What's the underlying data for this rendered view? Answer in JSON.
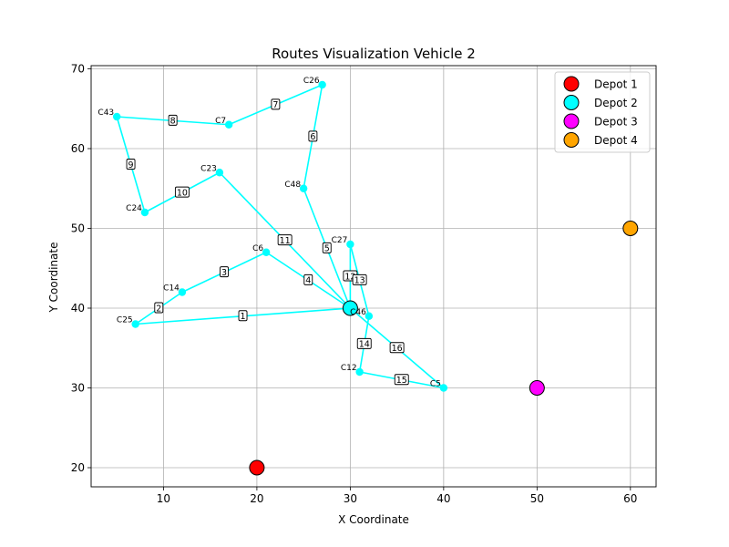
{
  "chart_data": {
    "type": "scatter",
    "title": "Routes Visualization Vehicle 2",
    "xlabel": "X Coordinate",
    "ylabel": "Y Coordinate",
    "xlim": [
      2.25,
      62.75
    ],
    "ylim": [
      17.6,
      70.4
    ],
    "xticks": [
      10,
      20,
      30,
      40,
      50,
      60
    ],
    "yticks": [
      20,
      30,
      40,
      50,
      60,
      70
    ],
    "grid": true,
    "legend_position": "top-right",
    "route_color": "#00ffff",
    "depots": [
      {
        "name": "Depot 1",
        "x": 20,
        "y": 20,
        "color": "#ff0000"
      },
      {
        "name": "Depot 2",
        "x": 30,
        "y": 40,
        "color": "#00ffff"
      },
      {
        "name": "Depot 3",
        "x": 50,
        "y": 30,
        "color": "#ff00ff"
      },
      {
        "name": "Depot 4",
        "x": 60,
        "y": 50,
        "color": "#ffa500"
      }
    ],
    "customers": [
      {
        "name": "C25",
        "x": 7,
        "y": 38
      },
      {
        "name": "C14",
        "x": 12,
        "y": 42
      },
      {
        "name": "C6",
        "x": 21,
        "y": 47
      },
      {
        "name": "C26",
        "x": 27,
        "y": 68
      },
      {
        "name": "C7",
        "x": 17,
        "y": 63
      },
      {
        "name": "C43",
        "x": 5,
        "y": 64
      },
      {
        "name": "C24",
        "x": 8,
        "y": 52
      },
      {
        "name": "C23",
        "x": 16,
        "y": 57
      },
      {
        "name": "C48",
        "x": 25,
        "y": 55
      },
      {
        "name": "C27",
        "x": 30,
        "y": 48
      },
      {
        "name": "C46",
        "x": 32,
        "y": 39
      },
      {
        "name": "C12",
        "x": 31,
        "y": 32
      },
      {
        "name": "C5",
        "x": 40,
        "y": 30
      }
    ],
    "routes": [
      {
        "label": "1",
        "from": [
          30,
          40
        ],
        "to": [
          7,
          38
        ]
      },
      {
        "label": "2",
        "from": [
          7,
          38
        ],
        "to": [
          12,
          42
        ]
      },
      {
        "label": "3",
        "from": [
          12,
          42
        ],
        "to": [
          21,
          47
        ]
      },
      {
        "label": "4",
        "from": [
          21,
          47
        ],
        "to": [
          30,
          40
        ]
      },
      {
        "label": "5",
        "from": [
          30,
          40
        ],
        "to": [
          25,
          55
        ]
      },
      {
        "label": "6",
        "from": [
          25,
          55
        ],
        "to": [
          27,
          68
        ]
      },
      {
        "label": "7",
        "from": [
          27,
          68
        ],
        "to": [
          17,
          63
        ]
      },
      {
        "label": "8",
        "from": [
          17,
          63
        ],
        "to": [
          5,
          64
        ]
      },
      {
        "label": "9",
        "from": [
          5,
          64
        ],
        "to": [
          8,
          52
        ]
      },
      {
        "label": "10",
        "from": [
          8,
          52
        ],
        "to": [
          16,
          57
        ]
      },
      {
        "label": "11",
        "from": [
          16,
          57
        ],
        "to": [
          30,
          40
        ]
      },
      {
        "label": "12",
        "from": [
          30,
          40
        ],
        "to": [
          30,
          48
        ]
      },
      {
        "label": "13",
        "from": [
          30,
          48
        ],
        "to": [
          32,
          39
        ]
      },
      {
        "label": "14",
        "from": [
          32,
          39
        ],
        "to": [
          31,
          32
        ]
      },
      {
        "label": "15",
        "from": [
          31,
          32
        ],
        "to": [
          40,
          30
        ]
      },
      {
        "label": "16",
        "from": [
          40,
          30
        ],
        "to": [
          30,
          40
        ]
      }
    ]
  }
}
